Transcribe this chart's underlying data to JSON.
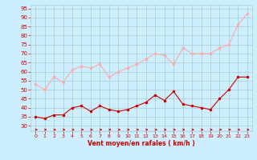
{
  "x": [
    0,
    1,
    2,
    3,
    4,
    5,
    6,
    7,
    8,
    9,
    10,
    11,
    12,
    13,
    14,
    15,
    16,
    17,
    18,
    19,
    20,
    21,
    22,
    23
  ],
  "wind_avg": [
    35,
    34,
    36,
    36,
    40,
    41,
    38,
    41,
    39,
    38,
    39,
    41,
    43,
    47,
    44,
    49,
    42,
    41,
    40,
    39,
    45,
    50,
    57,
    57
  ],
  "wind_gust": [
    53,
    50,
    57,
    54,
    61,
    63,
    62,
    64,
    57,
    60,
    62,
    64,
    67,
    70,
    69,
    64,
    73,
    70,
    70,
    70,
    73,
    75,
    86,
    92
  ],
  "bg_color": "#cceeff",
  "grid_color": "#aacccc",
  "avg_color": "#cc0000",
  "gust_color": "#ffaaaa",
  "arrow_color": "#cc0000",
  "xlabel": "Vent moyen/en rafales ( km/h )",
  "xlabel_color": "#cc0000",
  "tick_color": "#cc0000",
  "ylim_min": 27,
  "ylim_max": 97,
  "yticks": [
    30,
    35,
    40,
    45,
    50,
    55,
    60,
    65,
    70,
    75,
    80,
    85,
    90,
    95
  ],
  "xticks": [
    0,
    1,
    2,
    3,
    4,
    5,
    6,
    7,
    8,
    9,
    10,
    11,
    12,
    13,
    14,
    15,
    16,
    17,
    18,
    19,
    20,
    21,
    22,
    23
  ]
}
